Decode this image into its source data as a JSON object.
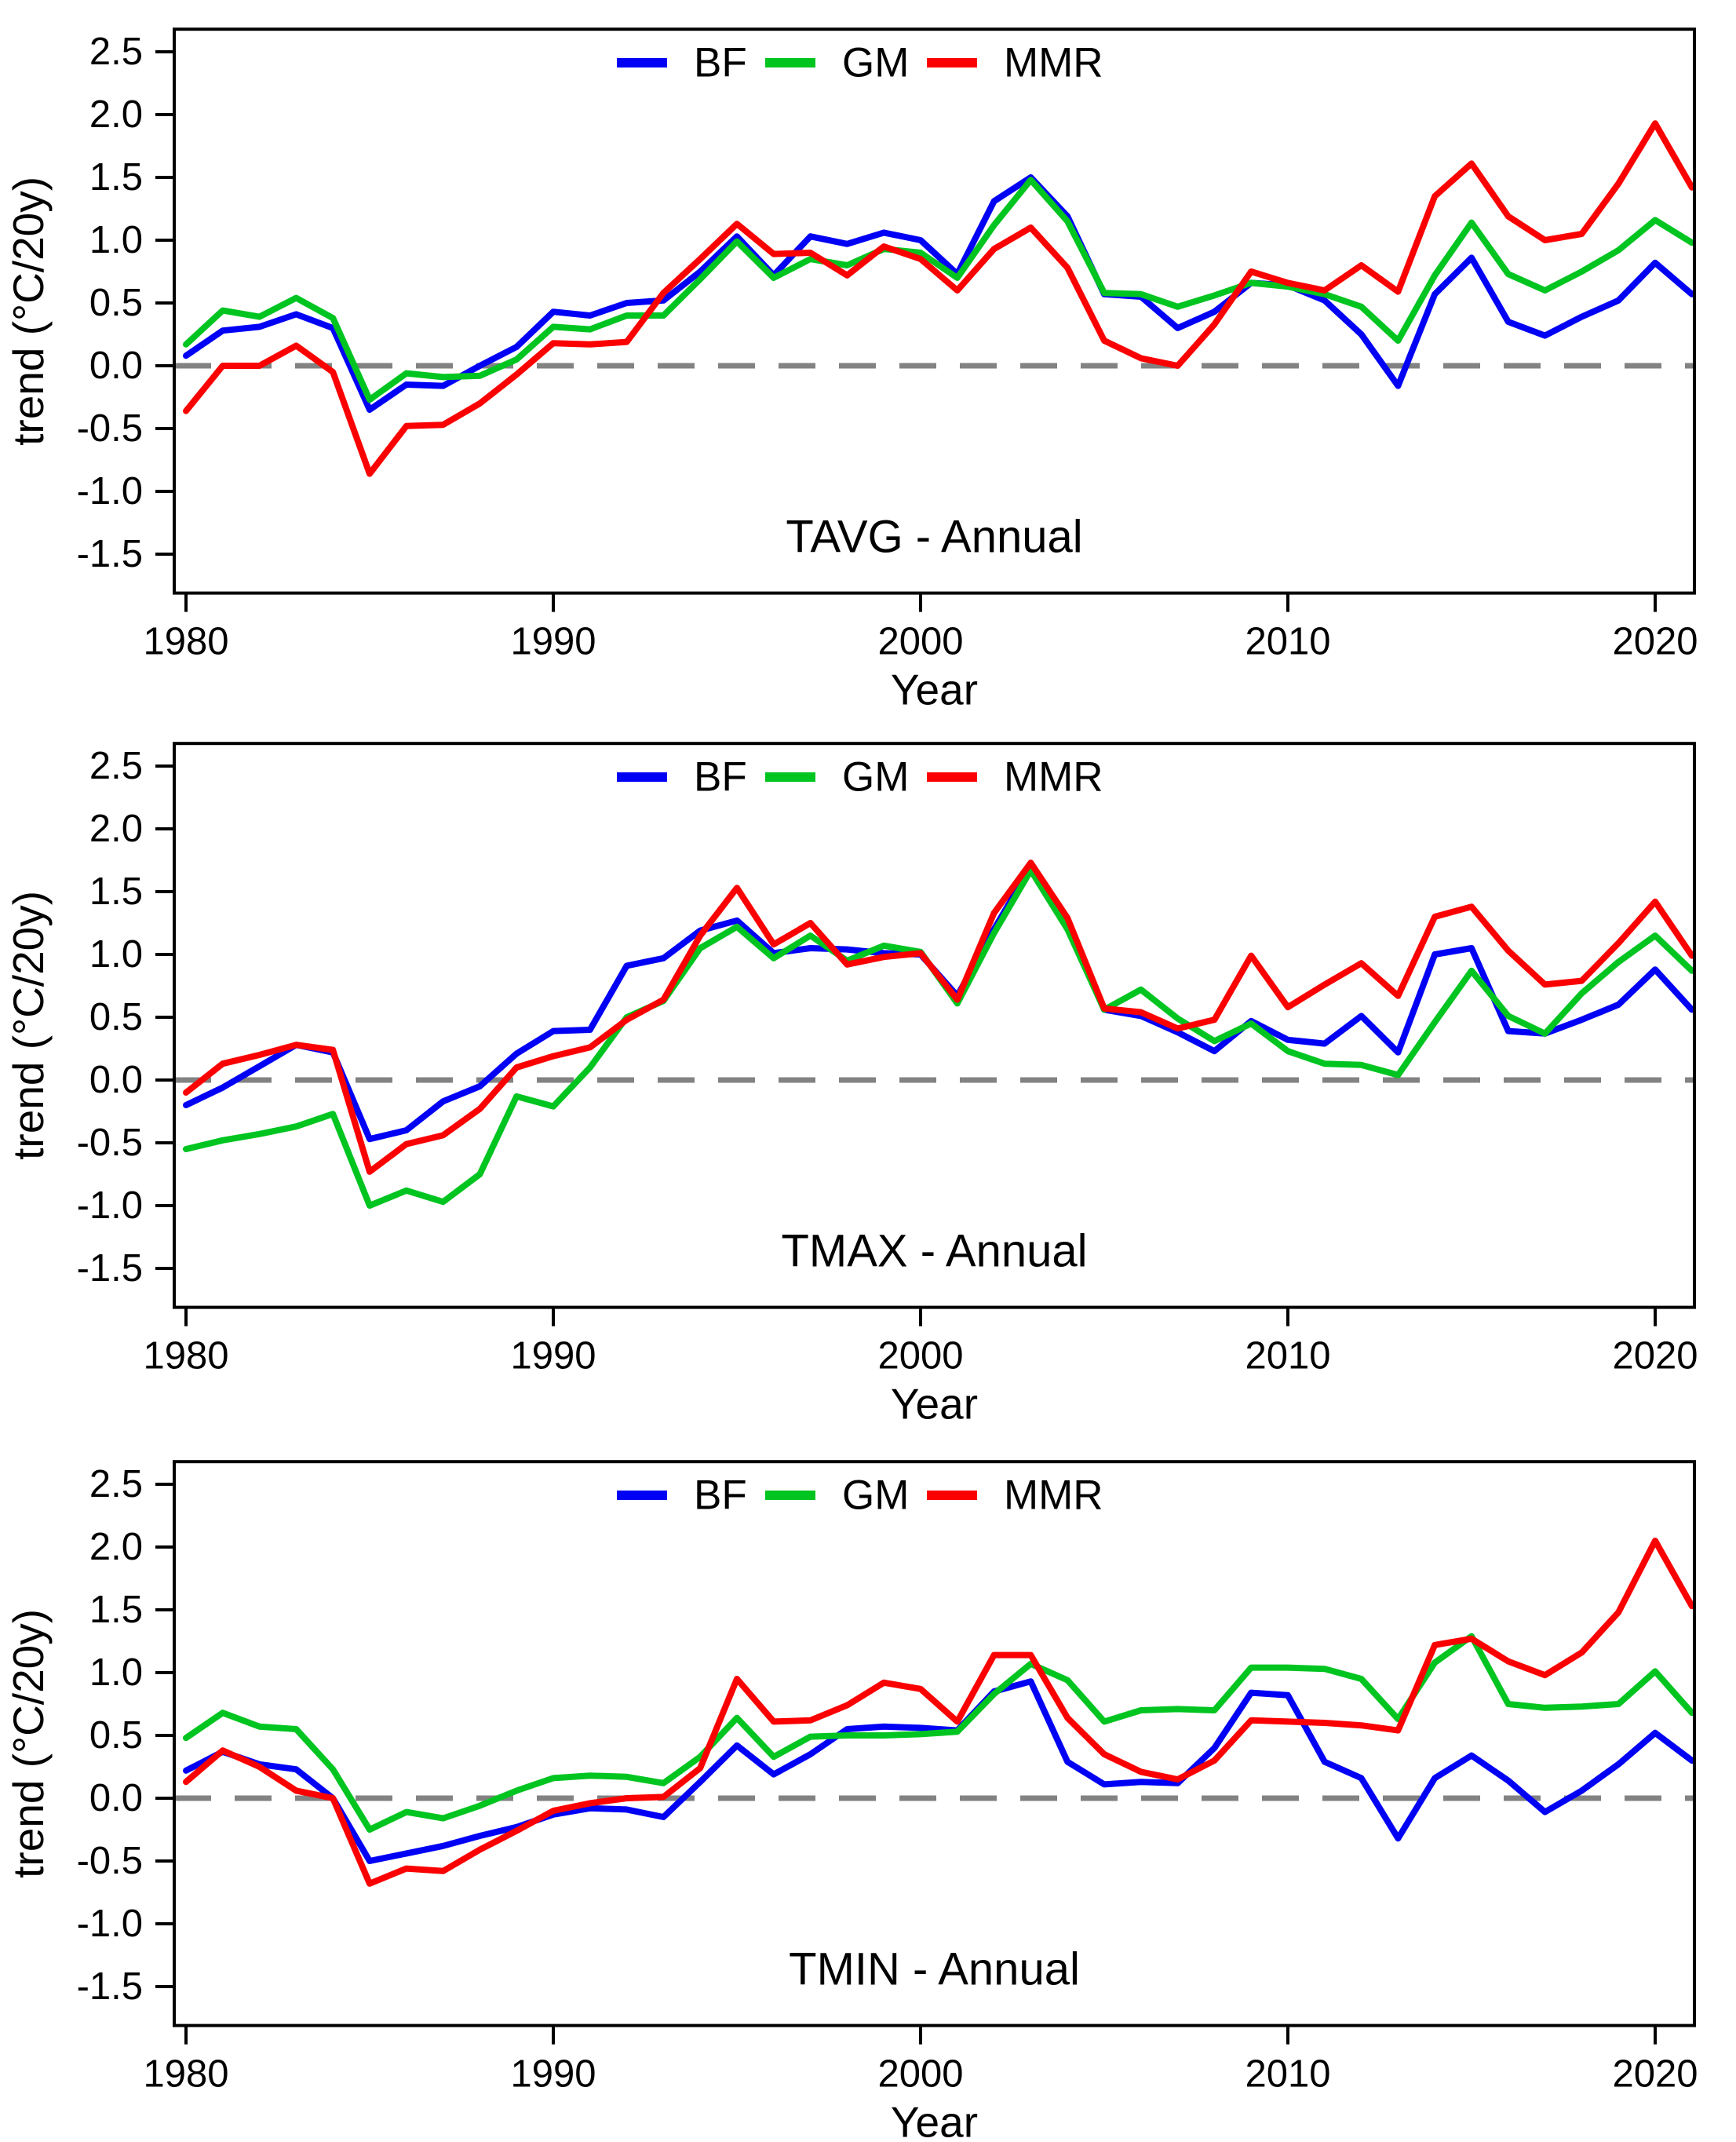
{
  "figure": {
    "background": "#ffffff",
    "text_color": "#000000"
  },
  "axes": {
    "xlabel": "Year",
    "ylabel": "trend (°C/20y)",
    "x_ticks": [
      1980,
      1990,
      2000,
      2010,
      2020
    ],
    "y_ticks": [
      2.5,
      2.0,
      1.5,
      1.0,
      0.5,
      0.0,
      -0.5,
      -1.0,
      -1.5
    ],
    "xlim": [
      1979.7,
      2021.7
    ],
    "ylim": [
      -1.81,
      2.68
    ],
    "grid": false,
    "zero_line": {
      "value": 0.0,
      "color": "#828282",
      "style": "dashed"
    },
    "legend_position": "top-center"
  },
  "legend": {
    "items": [
      {
        "label": "BF",
        "color": "#0000f5"
      },
      {
        "label": "GM",
        "color": "#00c420"
      },
      {
        "label": "MMR",
        "color": "#fb0000"
      }
    ]
  },
  "chart_data": [
    {
      "type": "line",
      "title": "TAVG - Annual",
      "xlabel": "Year",
      "ylabel": "trend (°C/20y)",
      "x": [
        1980,
        1981,
        1982,
        1983,
        1984,
        1985,
        1986,
        1987,
        1988,
        1989,
        1990,
        1991,
        1992,
        1993,
        1994,
        1995,
        1996,
        1997,
        1998,
        1999,
        2000,
        2001,
        2002,
        2003,
        2004,
        2005,
        2006,
        2007,
        2008,
        2009,
        2010,
        2011,
        2012,
        2013,
        2014,
        2015,
        2016,
        2017,
        2018,
        2019,
        2020,
        2021
      ],
      "series": [
        {
          "name": "BF",
          "color": "#0000f5",
          "values": [
            0.08,
            0.28,
            0.31,
            0.41,
            0.3,
            -0.35,
            -0.15,
            -0.16,
            0.0,
            0.15,
            0.43,
            0.4,
            0.5,
            0.52,
            0.75,
            1.03,
            0.72,
            1.03,
            0.97,
            1.06,
            1.0,
            0.73,
            1.31,
            1.5,
            1.19,
            0.57,
            0.55,
            0.3,
            0.43,
            0.66,
            0.64,
            0.52,
            0.25,
            -0.16,
            0.57,
            0.86,
            0.35,
            0.24,
            0.39,
            0.52,
            0.82,
            0.57
          ]
        },
        {
          "name": "GM",
          "color": "#00c420",
          "values": [
            0.17,
            0.44,
            0.39,
            0.54,
            0.38,
            -0.27,
            -0.06,
            -0.09,
            -0.08,
            0.05,
            0.31,
            0.29,
            0.4,
            0.4,
            0.69,
            0.99,
            0.7,
            0.85,
            0.8,
            0.93,
            0.9,
            0.7,
            1.12,
            1.48,
            1.15,
            0.58,
            0.57,
            0.47,
            0.56,
            0.66,
            0.63,
            0.57,
            0.47,
            0.2,
            0.72,
            1.14,
            0.73,
            0.6,
            0.75,
            0.92,
            1.16,
            0.98
          ]
        },
        {
          "name": "MMR",
          "color": "#fb0000",
          "values": [
            -0.36,
            0.0,
            0.0,
            0.16,
            -0.05,
            -0.86,
            -0.48,
            -0.47,
            -0.3,
            -0.07,
            0.18,
            0.17,
            0.19,
            0.58,
            0.85,
            1.13,
            0.89,
            0.9,
            0.72,
            0.95,
            0.85,
            0.6,
            0.93,
            1.1,
            0.78,
            0.2,
            0.06,
            0.0,
            0.33,
            0.75,
            0.66,
            0.6,
            0.8,
            0.59,
            1.35,
            1.61,
            1.19,
            1.0,
            1.05,
            1.45,
            1.93,
            1.42
          ]
        }
      ]
    },
    {
      "type": "line",
      "title": "TMAX - Annual",
      "xlabel": "Year",
      "ylabel": "trend (°C/20y)",
      "x": [
        1980,
        1981,
        1982,
        1983,
        1984,
        1985,
        1986,
        1987,
        1988,
        1989,
        1990,
        1991,
        1992,
        1993,
        1994,
        1995,
        1996,
        1997,
        1998,
        1999,
        2000,
        2001,
        2002,
        2003,
        2004,
        2005,
        2006,
        2007,
        2008,
        2009,
        2010,
        2011,
        2012,
        2013,
        2014,
        2015,
        2016,
        2017,
        2018,
        2019,
        2020,
        2021
      ],
      "series": [
        {
          "name": "BF",
          "color": "#0000f5",
          "values": [
            -0.2,
            -0.06,
            0.11,
            0.28,
            0.22,
            -0.47,
            -0.4,
            -0.17,
            -0.05,
            0.21,
            0.39,
            0.4,
            0.91,
            0.97,
            1.19,
            1.27,
            1.01,
            1.05,
            1.04,
            1.01,
            1.0,
            0.67,
            1.2,
            1.7,
            1.23,
            0.56,
            0.51,
            0.38,
            0.23,
            0.47,
            0.32,
            0.29,
            0.51,
            0.22,
            1.0,
            1.05,
            0.39,
            0.37,
            0.48,
            0.6,
            0.88,
            0.56
          ]
        },
        {
          "name": "GM",
          "color": "#00c420",
          "values": [
            -0.55,
            -0.48,
            -0.43,
            -0.37,
            -0.27,
            -1.0,
            -0.88,
            -0.97,
            -0.75,
            -0.13,
            -0.21,
            0.1,
            0.5,
            0.63,
            1.05,
            1.22,
            0.97,
            1.15,
            0.95,
            1.07,
            1.02,
            0.61,
            1.17,
            1.67,
            1.2,
            0.56,
            0.72,
            0.49,
            0.31,
            0.45,
            0.23,
            0.13,
            0.12,
            0.04,
            0.46,
            0.87,
            0.51,
            0.37,
            0.69,
            0.94,
            1.15,
            0.87
          ]
        },
        {
          "name": "MMR",
          "color": "#fb0000",
          "values": [
            -0.1,
            0.13,
            0.2,
            0.28,
            0.24,
            -0.73,
            -0.51,
            -0.44,
            -0.23,
            0.1,
            0.19,
            0.26,
            0.48,
            0.64,
            1.15,
            1.53,
            1.08,
            1.25,
            0.92,
            0.98,
            1.01,
            0.64,
            1.33,
            1.73,
            1.29,
            0.57,
            0.54,
            0.41,
            0.48,
            0.99,
            0.58,
            0.76,
            0.93,
            0.67,
            1.3,
            1.38,
            1.03,
            0.76,
            0.79,
            1.09,
            1.42,
            0.99
          ]
        }
      ]
    },
    {
      "type": "line",
      "title": "TMIN - Annual",
      "xlabel": "Year",
      "ylabel": "trend (°C/20y)",
      "x": [
        1980,
        1981,
        1982,
        1983,
        1984,
        1985,
        1986,
        1987,
        1988,
        1989,
        1990,
        1991,
        1992,
        1993,
        1994,
        1995,
        1996,
        1997,
        1998,
        1999,
        2000,
        2001,
        2002,
        2003,
        2004,
        2005,
        2006,
        2007,
        2008,
        2009,
        2010,
        2011,
        2012,
        2013,
        2014,
        2015,
        2016,
        2017,
        2018,
        2019,
        2020,
        2021
      ],
      "series": [
        {
          "name": "BF",
          "color": "#0000f5",
          "values": [
            0.22,
            0.37,
            0.27,
            0.23,
            0.0,
            -0.5,
            -0.44,
            -0.38,
            -0.3,
            -0.23,
            -0.13,
            -0.08,
            -0.09,
            -0.15,
            0.13,
            0.42,
            0.19,
            0.35,
            0.55,
            0.57,
            0.56,
            0.54,
            0.85,
            0.93,
            0.29,
            0.11,
            0.13,
            0.12,
            0.4,
            0.84,
            0.82,
            0.29,
            0.16,
            -0.32,
            0.16,
            0.34,
            0.14,
            -0.11,
            0.06,
            0.27,
            0.52,
            0.3
          ]
        },
        {
          "name": "GM",
          "color": "#00c420",
          "values": [
            0.48,
            0.68,
            0.57,
            0.55,
            0.23,
            -0.25,
            -0.11,
            -0.16,
            -0.06,
            0.06,
            0.16,
            0.18,
            0.17,
            0.12,
            0.33,
            0.64,
            0.33,
            0.49,
            0.5,
            0.5,
            0.51,
            0.53,
            0.83,
            1.07,
            0.94,
            0.61,
            0.7,
            0.71,
            0.7,
            1.04,
            1.04,
            1.03,
            0.95,
            0.63,
            1.08,
            1.29,
            0.75,
            0.72,
            0.73,
            0.75,
            1.01,
            0.68
          ]
        },
        {
          "name": "MMR",
          "color": "#fb0000",
          "values": [
            0.13,
            0.38,
            0.25,
            0.06,
            0.0,
            -0.68,
            -0.56,
            -0.58,
            -0.41,
            -0.26,
            -0.1,
            -0.04,
            0.0,
            0.01,
            0.24,
            0.95,
            0.61,
            0.62,
            0.74,
            0.92,
            0.87,
            0.61,
            1.14,
            1.14,
            0.64,
            0.35,
            0.21,
            0.15,
            0.3,
            0.62,
            0.61,
            0.6,
            0.58,
            0.54,
            1.22,
            1.27,
            1.09,
            0.98,
            1.16,
            1.48,
            2.05,
            1.53
          ]
        }
      ]
    }
  ]
}
